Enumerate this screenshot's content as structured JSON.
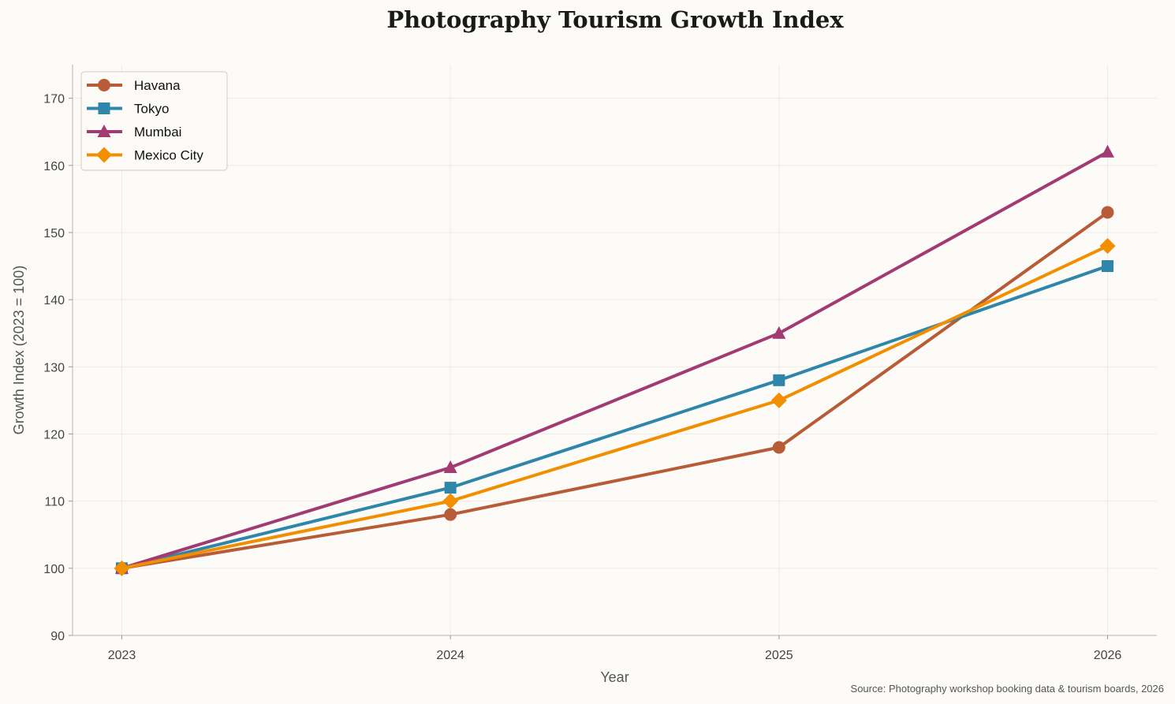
{
  "chart_data": {
    "type": "line",
    "title": "Photography Tourism Growth Index",
    "xlabel": "Year",
    "ylabel": "Growth Index (2023 = 100)",
    "x": [
      2023,
      2024,
      2025,
      2026
    ],
    "xticks": [
      "2023",
      "2024",
      "2025",
      "2026"
    ],
    "yticks": [
      90,
      100,
      110,
      120,
      130,
      140,
      150,
      160,
      170
    ],
    "xlim": [
      2022.85,
      2026.15
    ],
    "ylim": [
      90,
      175
    ],
    "grid": true,
    "legend_position": "top-left",
    "series": [
      {
        "name": "Havana",
        "values": [
          100,
          108,
          118,
          153
        ],
        "color": "#B85C38",
        "marker": "circle"
      },
      {
        "name": "Tokyo",
        "values": [
          100,
          112,
          128,
          145
        ],
        "color": "#2E86AB",
        "marker": "square"
      },
      {
        "name": "Mumbai",
        "values": [
          100,
          115,
          135,
          162
        ],
        "color": "#A23B72",
        "marker": "triangle"
      },
      {
        "name": "Mexico City",
        "values": [
          100,
          110,
          125,
          148
        ],
        "color": "#F18F01",
        "marker": "diamond"
      }
    ],
    "source": "Source: Photography workshop booking data & tourism boards, 2026"
  }
}
